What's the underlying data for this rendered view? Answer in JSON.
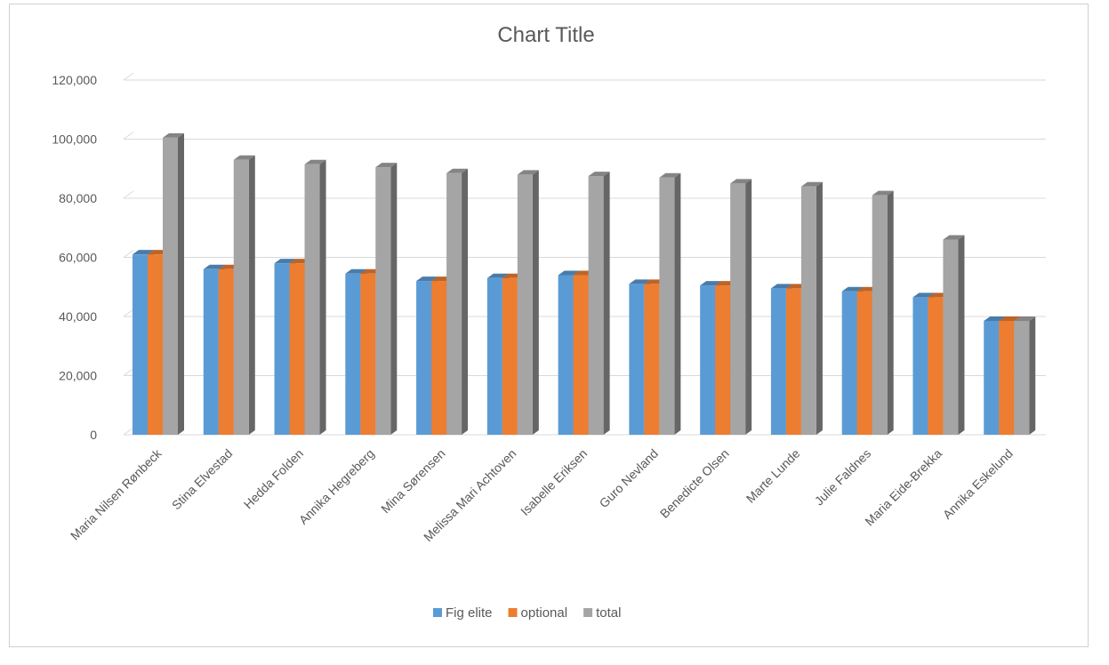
{
  "chart_data": {
    "type": "bar",
    "title": "Chart Title",
    "categories": [
      "Maria Nilsen Rønbeck",
      "Stina Elvestad",
      "Hedda Folden",
      "Annika Hegreberg",
      "Mina Sørensen",
      "Melissa Mari Achtoven",
      "Isabelle Eriksen",
      "Guro Nevland",
      "Benedicte Olsen",
      "Marte Lunde",
      "Julie Faldnes",
      "Maria Eide-Brekka",
      "Annika Eskelund"
    ],
    "series": [
      {
        "name": "Fig elite",
        "color": "#5B9BD5",
        "values": [
          61000,
          56000,
          58000,
          54500,
          52000,
          53000,
          54000,
          51000,
          50500,
          49500,
          48500,
          46500,
          38500
        ]
      },
      {
        "name": "optional",
        "color": "#ED7D31",
        "values": [
          61000,
          56000,
          58000,
          54500,
          52000,
          53000,
          54000,
          51000,
          50500,
          49500,
          48500,
          46500,
          38500
        ]
      },
      {
        "name": "total",
        "color": "#A5A5A5",
        "values": [
          100500,
          93000,
          91500,
          90500,
          88500,
          88000,
          87500,
          87000,
          85000,
          84000,
          81000,
          66000,
          38500
        ]
      }
    ],
    "yticks": [
      "0",
      "20,000",
      "40,000",
      "60,000",
      "80,000",
      "100,000",
      "120,000"
    ],
    "ylim": [
      0,
      120000
    ],
    "grid": true,
    "legend": "bottom"
  }
}
